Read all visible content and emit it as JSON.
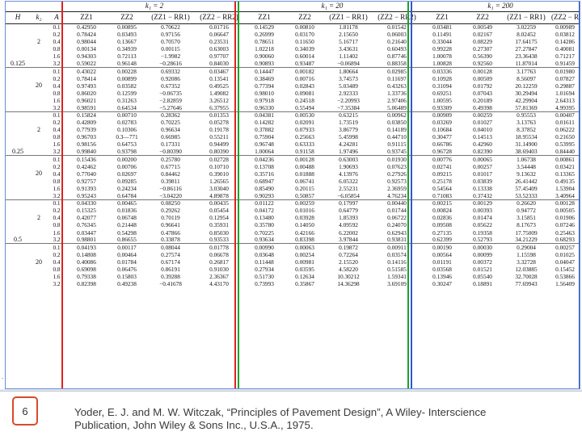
{
  "header": {
    "col_H": "H",
    "col_k2": "k₂",
    "col_A": "A",
    "groups": [
      "k₁ = 2",
      "k₁ = 20",
      "k₁ = 200"
    ],
    "sub_columns": [
      "ZZ1",
      "ZZ2",
      "(ZZ1 − RR1)",
      "(ZZ2 − RR2)"
    ]
  },
  "blocks": [
    {
      "H": "0.125",
      "k2_groups": [
        {
          "k2": "2",
          "rows": [
            {
              "A": "0.1",
              "v": [
                "0.42950",
                "0.00895",
                "0.70622",
                "0.01716",
                "0.14529",
                "0.00810",
                "1.81178",
                "0.01542",
                "0.03481",
                "0.00549",
                "3.02259",
                "0.00989"
              ]
            },
            {
              "A": "0.2",
              "v": [
                "0.78424",
                "0.03493",
                "0.97156",
                "0.06647",
                "0.26999",
                "0.03170",
                "2.15650",
                "0.06003",
                "0.11491",
                "0.02167",
                "8.02452",
                "0.03812"
              ]
            },
            {
              "A": "0.4",
              "v": [
                "0.98044",
                "0.13667",
                "0.70570",
                "0.23531",
                "0.78651",
                "0.11650",
                "5.16717",
                "0.21640",
                "0.33044",
                "0.08229",
                "17.64175",
                "0.14286"
              ]
            },
            {
              "A": "0.8",
              "v": [
                "0.00134",
                "0.34939",
                "0.00115",
                "0.63003",
                "1.02218",
                "0.34039",
                "3.43631",
                "0.60493",
                "0.99228",
                "0.27307",
                "27.27847",
                "0.40081"
              ]
            },
            {
              "A": "1.6",
              "v": [
                "0.94303",
                "0.72113",
                "−1.9982",
                "0.97707",
                "0.90060",
                "0.60014",
                "1.11402",
                "0.87746",
                "1.00078",
                "0.56390",
                "23.36438",
                "0.71217"
              ]
            },
            {
              "A": "3.2",
              "v": [
                "0.59022",
                "0.96148",
                "−0.28616",
                "0.84030",
                "0.90893",
                "0.93487",
                "−0.06894",
                "0.88358",
                "1.00828",
                "0.92560",
                "11.87014",
                "0.91459"
              ]
            }
          ]
        },
        {
          "k2": "20",
          "rows": [
            {
              "A": "0.1",
              "v": [
                "0.43022",
                "0.00228",
                "0.69332",
                "0.03467",
                "0.14447",
                "0.00182",
                "1.80664",
                "0.02985",
                "0.03336",
                "0.00128",
                "3.17763",
                "0.01980"
              ]
            },
            {
              "A": "0.2",
              "v": [
                "0.78414",
                "0.00899",
                "0.92086",
                "0.13541",
                "0.38469",
                "0.00716",
                "3.74573",
                "0.11697",
                "0.10928",
                "0.00509",
                "8.56097",
                "0.07827"
              ]
            },
            {
              "A": "0.4",
              "v": [
                "0.97493",
                "0.03582",
                "0.67352",
                "0.49525",
                "0.77394",
                "0.02843",
                "5.03489",
                "0.43263",
                "0.31094",
                "0.01792",
                "20.12259",
                "0.29887"
              ]
            },
            {
              "A": "0.8",
              "v": [
                "0.86020",
                "0.12599",
                "−0.06735",
                "1.49082",
                "0.98010",
                "0.09081",
                "2.92333",
                "1.33736",
                "0.69251",
                "0.07043",
                "30.29494",
                "1.01694"
              ]
            },
            {
              "A": "1.6",
              "v": [
                "0.96021",
                "0.31263",
                "−2.82859",
                "3.26512",
                "0.97918",
                "0.24518",
                "−2.20993",
                "2.97406",
                "1.00595",
                "0.20189",
                "42.29904",
                "2.64313"
              ]
            },
            {
              "A": "3.2",
              "v": [
                "0.98591",
                "0.64534",
                "−5.27646",
                "6.37955",
                "0.96330",
                "0.55494",
                "−7.35384",
                "5.06489",
                "0.93309",
                "0.49398",
                "57.81369",
                "4.99395"
              ]
            }
          ]
        }
      ]
    },
    {
      "H": "0.25",
      "k2_groups": [
        {
          "k2": "2",
          "rows": [
            {
              "A": "0.1",
              "v": [
                "0.15824",
                "0.00710",
                "0.28362",
                "0.01353",
                "0.04381",
                "0.00530",
                "0.63215",
                "0.00962",
                "0.00909",
                "0.00259",
                "0.95553",
                "0.00407"
              ]
            },
            {
              "A": "0.2",
              "v": [
                "0.42809",
                "0.02783",
                "0.70225",
                "0.05278",
                "0.14282",
                "0.02091",
                "1.73519",
                "0.03850",
                "0.03269",
                "0.01027",
                "3.13763",
                "0.01611"
              ]
            },
            {
              "A": "0.4",
              "v": [
                "0.77939",
                "0.10306",
                "0.96634",
                "0.19178",
                "0.37882",
                "0.07933",
                "3.86779",
                "0.14189",
                "0.10684",
                "0.04010",
                "8.37852",
                "0.06222"
              ]
            },
            {
              "A": "0.8",
              "v": [
                "0.96703",
                "0.3—771",
                "0.66985",
                "0.55211",
                "0.75904",
                "0.25663",
                "5.45998",
                "0.44710",
                "0.30477",
                "0.14513",
                "18.95534",
                "0.21650"
              ]
            },
            {
              "A": "1.6",
              "v": [
                "0.98156",
                "0.64753",
                "0.17331",
                "0.94499",
                "0.96748",
                "0.63333",
                "4.24281",
                "0.91115",
                "0.66786",
                "0.42960",
                "31.14900",
                "0.53995"
              ]
            },
            {
              "A": "3.2",
              "v": [
                "0.99840",
                "0.93798",
                "−0.80390",
                "0.80390",
                "1.00064",
                "0.91158",
                "1.97496",
                "0.93745",
                "0.96728",
                "0.82390",
                "38.69403",
                "0.84440"
              ]
            }
          ]
        },
        {
          "k2": "20",
          "rows": [
            {
              "A": "0.1",
              "v": [
                "0.15436",
                "0.00200",
                "0.25780",
                "0.02728",
                "0.04236",
                "0.00128",
                "0.63003",
                "0.01930",
                "0.00776",
                "0.00065",
                "1.06738",
                "0.00861"
              ]
            },
            {
              "A": "0.2",
              "v": [
                "0.42462",
                "0.00706",
                "0.67715",
                "0.10710",
                "0.13708",
                "0.00488",
                "1.90693",
                "0.07623",
                "0.02741",
                "0.00257",
                "3.54448",
                "0.03421"
              ]
            },
            {
              "A": "0.4",
              "v": [
                "0.77040",
                "0.02697",
                "0.84462",
                "0.39010",
                "0.35716",
                "0.01888",
                "4.13976",
                "0.27926",
                "0.09215",
                "0.01017",
                "9.13632",
                "0.13365"
              ]
            },
            {
              "A": "0.8",
              "v": [
                "0.92757",
                "0.09285",
                "0.39811",
                "1.26565",
                "0.68947",
                "0.06741",
                "6.05322",
                "0.92573",
                "0.25178",
                "0.03839",
                "26.41442",
                "0.49135"
              ]
            },
            {
              "A": "1.6",
              "v": [
                "0.91393",
                "0.24234",
                "−0.86116",
                "3.03040",
                "0.85490",
                "0.20115",
                "2.55231",
                "2.36959",
                "0.54564",
                "0.13338",
                "57.45409",
                "1.53904"
              ]
            },
            {
              "A": "3.2",
              "v": [
                "0.95243",
                "0.64784",
                "−3.04220",
                "4.89878",
                "0.90293",
                "0.50857",
                "−6.05854",
                "4.76234",
                "0.71083",
                "0.37432",
                "53.52333",
                "3.40964"
              ]
            }
          ]
        }
      ]
    },
    {
      "H": "0.5",
      "k2_groups": [
        {
          "k2": "2",
          "rows": [
            {
              "A": "0.1",
              "v": [
                "0.04330",
                "0.00465",
                "0.08250",
                "0.00435",
                "0.01122",
                "0.00259",
                "0.17997",
                "0.00440",
                "0.00215",
                "0.00129",
                "0.26620",
                "0.00128"
              ]
            },
            {
              "A": "0.2",
              "v": [
                "0.15325",
                "0.01836",
                "0.29262",
                "0.05454",
                "0.04172",
                "0.01016",
                "0.64779",
                "0.01744",
                "0.00824",
                "0.00393",
                "0.94772",
                "0.00505"
              ]
            },
            {
              "A": "0.4",
              "v": [
                "0.42077",
                "0.06748",
                "0.70119",
                "0.12954",
                "0.13480",
                "0.03928",
                "1.85393",
                "0.06722",
                "0.02836",
                "0.01474",
                "3.15851",
                "0.01906"
              ]
            },
            {
              "A": "0.8",
              "v": [
                "0.76345",
                "0.21448",
                "0.96641",
                "0.35931",
                "0.35780",
                "0.14050",
                "4.09592",
                "0.24070",
                "0.09508",
                "0.05622",
                "8.17673",
                "0.07246"
              ]
            },
            {
              "A": "1.6",
              "v": [
                "0.03447",
                "0.54298",
                "0.47866",
                "0.85030",
                "0.70225",
                "0.42166",
                "6.22002",
                "0.62943",
                "0.27135",
                "0.19358",
                "17.75009",
                "0.25463"
              ]
            },
            {
              "A": "3.2",
              "v": [
                "0.98801",
                "0.86655",
                "0.33878",
                "0.93533",
                "0.93634",
                "0.83398",
                "3.97844",
                "0.93831",
                "0.62399",
                "0.52793",
                "34.21229",
                "0.68293"
              ]
            }
          ]
        },
        {
          "k2": "20",
          "rows": [
            {
              "A": "0.1",
              "v": [
                "0.04193",
                "0.00117",
                "0.08044",
                "0.01778",
                "0.00990",
                "0.00063",
                "0.19872",
                "0.00911",
                "0.00190",
                "0.00030",
                "0.29004",
                "0.00257"
              ]
            },
            {
              "A": "0.2",
              "v": [
                "0.14808",
                "0.00464",
                "0.27574",
                "0.06678",
                "0.03648",
                "0.00254",
                "0.72264",
                "0.03574",
                "0.00564",
                "0.00099",
                "1.15598",
                "0.01025"
              ]
            },
            {
              "A": "0.4",
              "v": [
                "0.40086",
                "0.01784",
                "0.67174",
                "0.26817",
                "0.11448",
                "0.00981",
                "2.15520",
                "0.14116",
                "0.01191",
                "0.00372",
                "3.32728",
                "0.04047"
              ]
            },
            {
              "A": "0.8",
              "v": [
                "0.69098",
                "0.06476",
                "0.86191",
                "0.91030",
                "0.27934",
                "0.03595",
                "4.58220",
                "0.51585",
                "0.03568",
                "0.01521",
                "12.03885",
                "0.15452"
              ]
            },
            {
              "A": "1.6",
              "v": [
                "0.79338",
                "0.15803",
                "0.39288",
                "2.36367",
                "0.51730",
                "0.12634",
                "10.30212",
                "1.59341",
                "0.13946",
                "0.05540",
                "32.70028",
                "0.53866"
              ]
            },
            {
              "A": "3.2",
              "v": [
                "0.82398",
                "0.49238",
                "−0.41678",
                "4.43170",
                "0.73993",
                "0.35867",
                "14.36298",
                "3.69109",
                "0.30247",
                "0.18891",
                "77.69943",
                "1.56409"
              ]
            }
          ]
        }
      ]
    }
  ],
  "footer": {
    "slide_number": "6",
    "citation_line1": "Yoder, E. J. and M. W. Witczak, “Principles of Pavement Design”, A Wiley- Interscience",
    "citation_line2": "Publication, John Wiley & Sons Inc., U.S.A., 1975."
  },
  "colors": {
    "k1_2_group_lines": "#e02020",
    "k1_20_group_lines": "#1fa02a",
    "k1_200_group_lines": "#3355cc",
    "slide_number_border": "#d94a2a"
  }
}
